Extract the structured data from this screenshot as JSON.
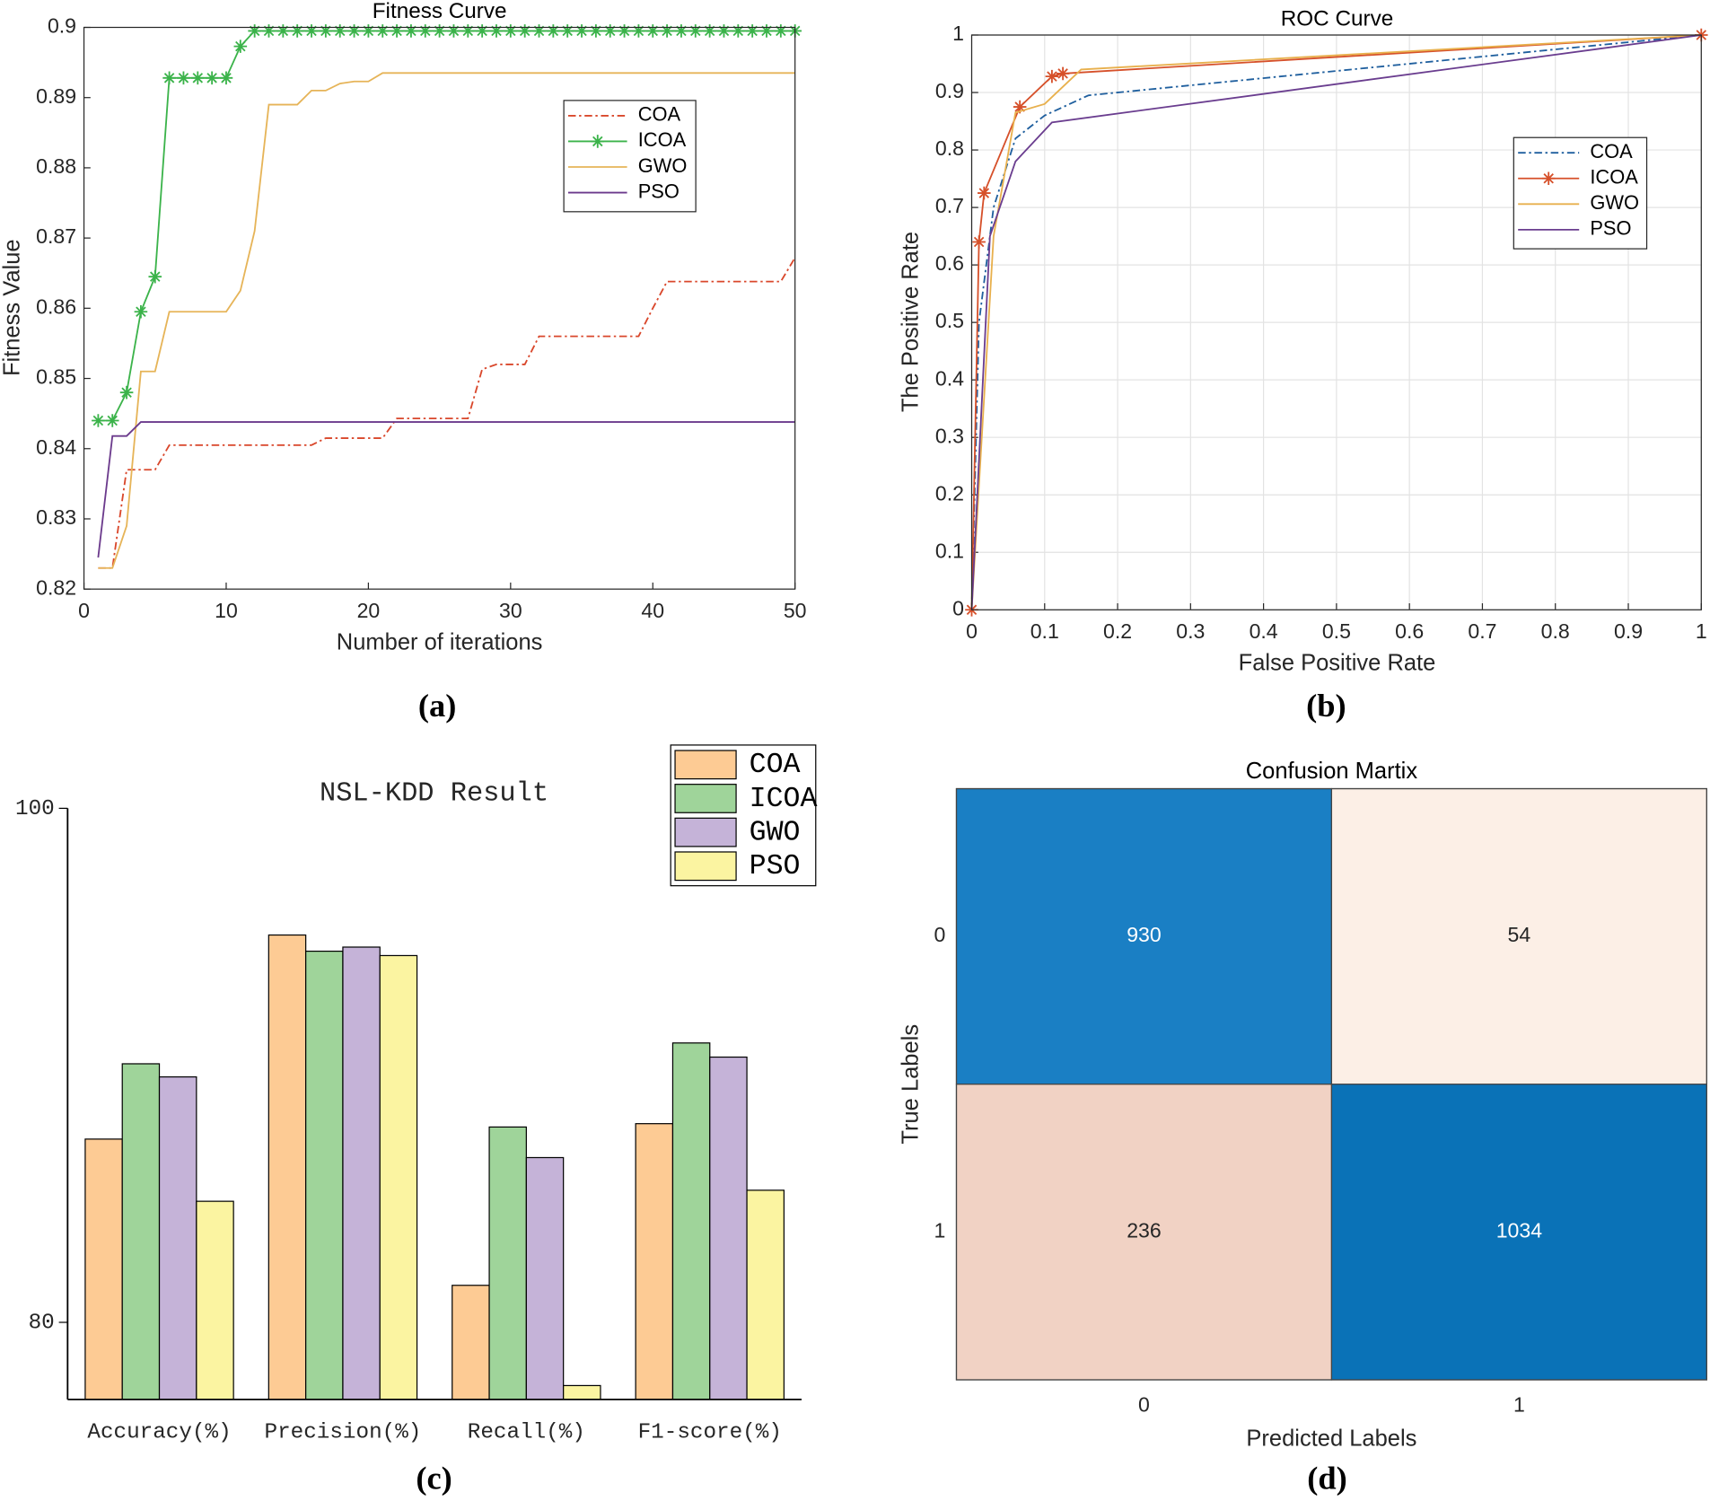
{
  "chart_data": [
    {
      "type": "line",
      "panel_label": "(a)",
      "title": "Fitness Curve",
      "xlabel": "Number of iterations",
      "ylabel": "Fitness Value",
      "x": [
        1,
        2,
        3,
        4,
        5,
        6,
        7,
        8,
        9,
        10,
        11,
        12,
        13,
        14,
        15,
        16,
        17,
        18,
        19,
        20,
        21,
        22,
        23,
        24,
        25,
        26,
        27,
        28,
        29,
        30,
        31,
        32,
        33,
        34,
        35,
        36,
        37,
        38,
        39,
        40,
        41,
        42,
        43,
        44,
        45,
        46,
        47,
        48,
        49,
        50
      ],
      "xlim": [
        0,
        50
      ],
      "xticks": [
        0,
        10,
        20,
        30,
        40,
        50
      ],
      "ylim": [
        0.82,
        0.9
      ],
      "yticks": [
        0.82,
        0.83,
        0.84,
        0.85,
        0.86,
        0.87,
        0.88,
        0.89,
        0.9
      ],
      "grid": false,
      "legend": true,
      "series": [
        {
          "name": "COA",
          "color": "#d9472b",
          "linestyle": "-.",
          "marker": "none",
          "values": [
            0.823,
            0.823,
            0.837,
            0.837,
            0.837,
            0.8405,
            0.8405,
            0.8405,
            0.8405,
            0.8405,
            0.8405,
            0.8405,
            0.8405,
            0.8405,
            0.8405,
            0.8405,
            0.8415,
            0.8415,
            0.8415,
            0.8415,
            0.8415,
            0.8443,
            0.8443,
            0.8443,
            0.8443,
            0.8443,
            0.8443,
            0.8513,
            0.852,
            0.852,
            0.852,
            0.856,
            0.856,
            0.856,
            0.856,
            0.856,
            0.856,
            0.856,
            0.856,
            0.86,
            0.8638,
            0.8638,
            0.8638,
            0.8638,
            0.8638,
            0.8638,
            0.8638,
            0.8638,
            0.8638,
            0.8672
          ]
        },
        {
          "name": "ICOA",
          "color": "#3bb34a",
          "linestyle": "-",
          "marker": "*",
          "values": [
            0.844,
            0.844,
            0.848,
            0.8595,
            0.8645,
            0.8928,
            0.8928,
            0.8928,
            0.8928,
            0.8928,
            0.8973,
            0.8995,
            0.8995,
            0.8995,
            0.8995,
            0.8995,
            0.8995,
            0.8995,
            0.8995,
            0.8995,
            0.8995,
            0.8995,
            0.8995,
            0.8995,
            0.8995,
            0.8995,
            0.8995,
            0.8995,
            0.8995,
            0.8995,
            0.8995,
            0.8995,
            0.8995,
            0.8995,
            0.8995,
            0.8995,
            0.8995,
            0.8995,
            0.8995,
            0.8995,
            0.8995,
            0.8995,
            0.8995,
            0.8995,
            0.8995,
            0.8995,
            0.8995,
            0.8995,
            0.8995,
            0.8995
          ]
        },
        {
          "name": "GWO",
          "color": "#e6b458",
          "linestyle": "-",
          "marker": "none",
          "values": [
            0.823,
            0.823,
            0.829,
            0.851,
            0.851,
            0.8595,
            0.8595,
            0.8595,
            0.8595,
            0.8595,
            0.8625,
            0.871,
            0.889,
            0.889,
            0.889,
            0.891,
            0.891,
            0.892,
            0.8923,
            0.8923,
            0.8935,
            0.8935,
            0.8935,
            0.8935,
            0.8935,
            0.8935,
            0.8935,
            0.8935,
            0.8935,
            0.8935,
            0.8935,
            0.8935,
            0.8935,
            0.8935,
            0.8935,
            0.8935,
            0.8935,
            0.8935,
            0.8935,
            0.8935,
            0.8935,
            0.8935,
            0.8935,
            0.8935,
            0.8935,
            0.8935,
            0.8935,
            0.8935,
            0.8935,
            0.8935
          ]
        },
        {
          "name": "PSO",
          "color": "#6b3a8c",
          "linestyle": "-",
          "marker": "none",
          "values": [
            0.8245,
            0.8418,
            0.8418,
            0.8438,
            0.8438,
            0.8438,
            0.8438,
            0.8438,
            0.8438,
            0.8438,
            0.8438,
            0.8438,
            0.8438,
            0.8438,
            0.8438,
            0.8438,
            0.8438,
            0.8438,
            0.8438,
            0.8438,
            0.8438,
            0.8438,
            0.8438,
            0.8438,
            0.8438,
            0.8438,
            0.8438,
            0.8438,
            0.8438,
            0.8438,
            0.8438,
            0.8438,
            0.8438,
            0.8438,
            0.8438,
            0.8438,
            0.8438,
            0.8438,
            0.8438,
            0.8438,
            0.8438,
            0.8438,
            0.8438,
            0.8438,
            0.8438,
            0.8438,
            0.8438,
            0.8438,
            0.8438,
            0.8438
          ]
        }
      ]
    },
    {
      "type": "line",
      "panel_label": "(b)",
      "title": "ROC Curve",
      "xlabel": "False Positive Rate",
      "ylabel": "The Positive Rate",
      "xlim": [
        0,
        1
      ],
      "xticks": [
        0,
        0.1,
        0.2,
        0.3,
        0.4,
        0.5,
        0.6,
        0.7,
        0.8,
        0.9,
        1
      ],
      "ylim": [
        0,
        1
      ],
      "yticks": [
        0,
        0.1,
        0.2,
        0.3,
        0.4,
        0.5,
        0.6,
        0.7,
        0.8,
        0.9,
        1
      ],
      "grid": true,
      "legend": true,
      "series": [
        {
          "name": "COA",
          "color": "#1f5f9e",
          "linestyle": "-.",
          "marker": "none",
          "x": [
            0,
            0.01,
            0.03,
            0.06,
            0.1,
            0.16,
            1
          ],
          "values": [
            0,
            0.5,
            0.7,
            0.82,
            0.86,
            0.895,
            1
          ]
        },
        {
          "name": "ICOA",
          "color": "#d6502a",
          "linestyle": "-",
          "marker": "*",
          "x": [
            0,
            0.01,
            0.017,
            0.066,
            0.11,
            0.125,
            1
          ],
          "values": [
            0,
            0.64,
            0.725,
            0.875,
            0.928,
            0.933,
            1
          ]
        },
        {
          "name": "GWO",
          "color": "#e8b04d",
          "linestyle": "-",
          "marker": "none",
          "x": [
            0,
            0.03,
            0.06,
            0.1,
            0.15,
            1
          ],
          "values": [
            0,
            0.65,
            0.865,
            0.88,
            0.94,
            1
          ]
        },
        {
          "name": "PSO",
          "color": "#6a3d8f",
          "linestyle": "-",
          "marker": "none",
          "x": [
            0,
            0.025,
            0.06,
            0.11,
            1
          ],
          "values": [
            0,
            0.65,
            0.78,
            0.848,
            1
          ]
        }
      ]
    },
    {
      "type": "bar",
      "panel_label": "(c)",
      "title": "NSL-KDD Result",
      "categories": [
        "Accuracy(%)",
        "Precision(%)",
        "Recall(%)",
        "F1-score(%)"
      ],
      "ylim": [
        77,
        100
      ],
      "yticks": [
        80,
        100
      ],
      "legend": true,
      "series": [
        {
          "name": "COA",
          "color": "#fdcb94",
          "values": [
            87.13,
            95.07,
            81.44,
            87.73
          ]
        },
        {
          "name": "ICOA",
          "color": "#9fd49a",
          "values": [
            90.06,
            94.44,
            87.6,
            90.87
          ]
        },
        {
          "name": "GWO",
          "color": "#c5b3d8",
          "values": [
            89.55,
            94.6,
            86.41,
            90.32
          ]
        },
        {
          "name": "PSO",
          "color": "#fbf4a1",
          "values": [
            84.71,
            94.27,
            77.54,
            85.14
          ]
        }
      ]
    },
    {
      "type": "heatmap",
      "panel_label": "(d)",
      "title": "Confusion Martix",
      "xlabel": "Predicted Labels",
      "ylabel": "True Labels",
      "x_categories": [
        "0",
        "1"
      ],
      "y_categories": [
        "0",
        "1"
      ],
      "values": [
        [
          930,
          54
        ],
        [
          236,
          1034
        ]
      ],
      "cell_colors": [
        [
          "#1a7fc4",
          "#fcefe6"
        ],
        [
          "#f1d2c4",
          "#0a72b7"
        ]
      ]
    }
  ]
}
